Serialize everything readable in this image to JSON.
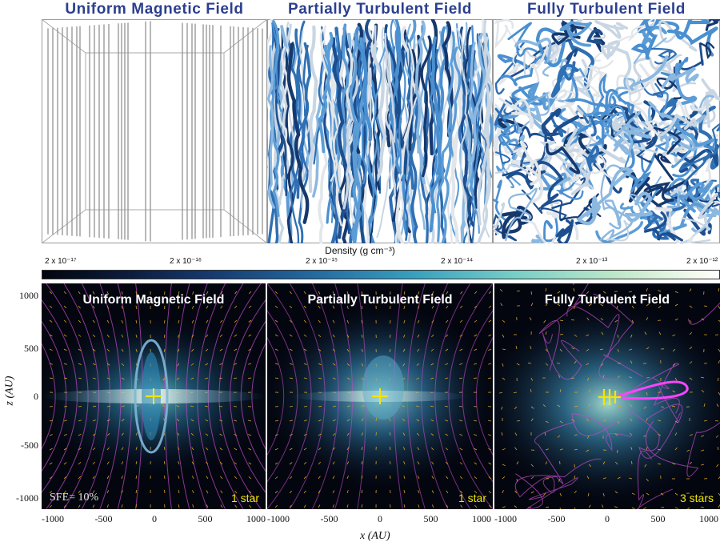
{
  "top_titles": [
    "Uniform Magnetic Field",
    "Partially Turbulent Field",
    "Fully Turbulent Field"
  ],
  "colorbar": {
    "title": "Density (g cm⁻³)",
    "ticks": [
      "2 x 10⁻¹⁷",
      "2 x 10⁻¹⁶",
      "2 x 10⁻¹⁵",
      "2 x 10⁻¹⁴",
      "2 x 10⁻¹³",
      "2 x 10⁻¹²"
    ]
  },
  "bottom_panels": [
    {
      "title": "Uniform Magnetic Field",
      "stars": "1 star",
      "sfe": "SFE= 10%"
    },
    {
      "title": "Partially Turbulent Field",
      "stars": "1 star"
    },
    {
      "title": "Fully Turbulent Field",
      "stars": "3 stars"
    }
  ],
  "axes": {
    "ylabel": "z (AU)",
    "xlabel": "x (AU)",
    "yticks": [
      "1000",
      "500",
      "0",
      "-500",
      "-1000"
    ],
    "xticks": [
      "-1000",
      "-500",
      "0",
      "500",
      "1000"
    ]
  },
  "colors": {
    "title_blue": "#2b3f8f",
    "star_yellow": "#f2e600",
    "field_magenta": "#d84fd6"
  }
}
